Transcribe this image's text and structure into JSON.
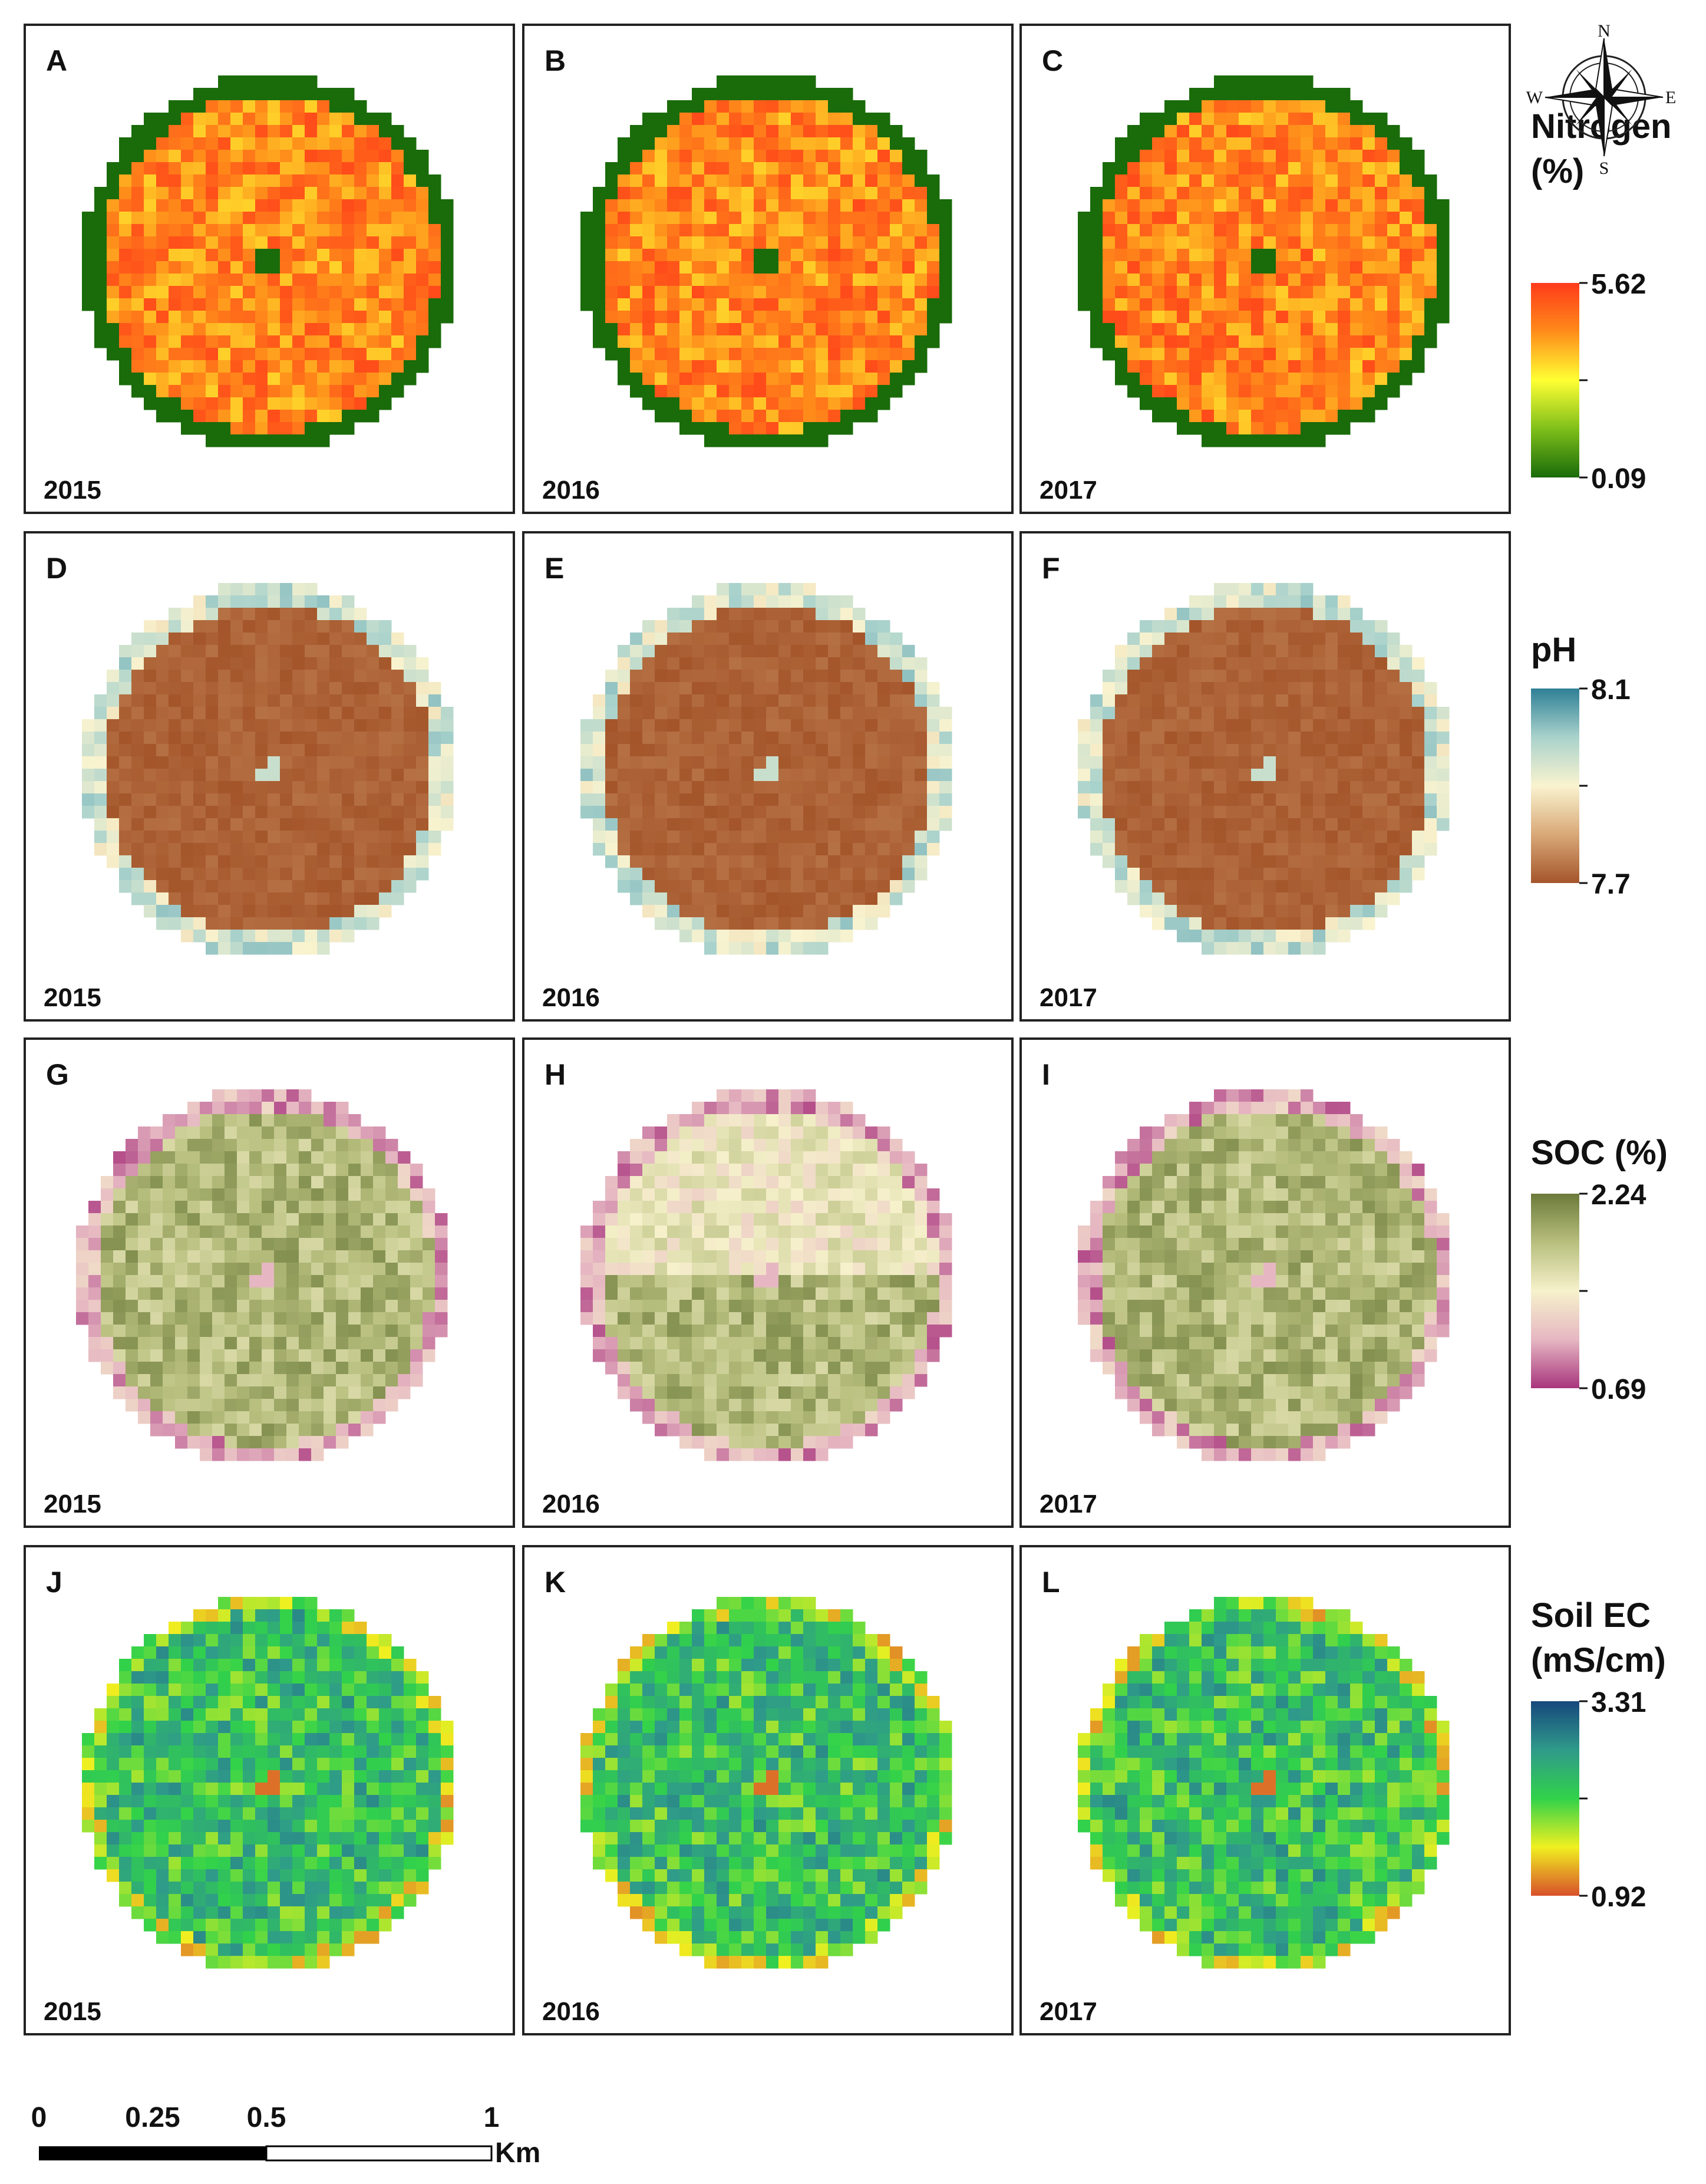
{
  "figure": {
    "rows": [
      {
        "id": "nitrogen",
        "legend": {
          "title_lines": [
            "Nitrogen",
            "(%)"
          ],
          "max_label": "5.62",
          "min_label": "0.09",
          "ramp": [
            "#ff3a1a",
            "#ff8c1a",
            "#ffff33",
            "#7fbf1a",
            "#1a6b0a"
          ]
        },
        "panels": [
          {
            "letter": "A",
            "year": "2015"
          },
          {
            "letter": "B",
            "year": "2016"
          },
          {
            "letter": "C",
            "year": "2017"
          }
        ]
      },
      {
        "id": "ph",
        "legend": {
          "title_lines": [
            "pH"
          ],
          "max_label": "8.1",
          "min_label": "7.7",
          "ramp": [
            "#2e7f96",
            "#a9d2cc",
            "#f9f3cf",
            "#d9a978",
            "#a4552a"
          ]
        },
        "panels": [
          {
            "letter": "D",
            "year": "2015"
          },
          {
            "letter": "E",
            "year": "2016"
          },
          {
            "letter": "F",
            "year": "2017"
          }
        ]
      },
      {
        "id": "soc",
        "legend": {
          "title_lines": [
            "SOC (%)"
          ],
          "max_label": "2.24",
          "min_label": "0.69",
          "ramp": [
            "#6b7a3a",
            "#b8bf7e",
            "#f6f1cb",
            "#e6b7c2",
            "#a8357d"
          ]
        },
        "panels": [
          {
            "letter": "G",
            "year": "2015"
          },
          {
            "letter": "H",
            "year": "2016"
          },
          {
            "letter": "I",
            "year": "2017"
          }
        ]
      },
      {
        "id": "ec",
        "legend": {
          "title_lines": [
            "Soil EC",
            "(mS/cm)"
          ],
          "max_label": "3.31",
          "min_label": "0.92",
          "ramp": [
            "#17477d",
            "#2f9a8a",
            "#31d24a",
            "#f0f020",
            "#d8502a"
          ]
        },
        "panels": [
          {
            "letter": "J",
            "year": "2015"
          },
          {
            "letter": "K",
            "year": "2016"
          },
          {
            "letter": "L",
            "year": "2017"
          }
        ]
      }
    ],
    "compass": {
      "n": "N",
      "s": "S",
      "e": "E",
      "w": "W"
    },
    "scale_bar": {
      "ticks": [
        "0",
        "0.25",
        "0.5",
        "1"
      ],
      "unit": "Km"
    }
  }
}
